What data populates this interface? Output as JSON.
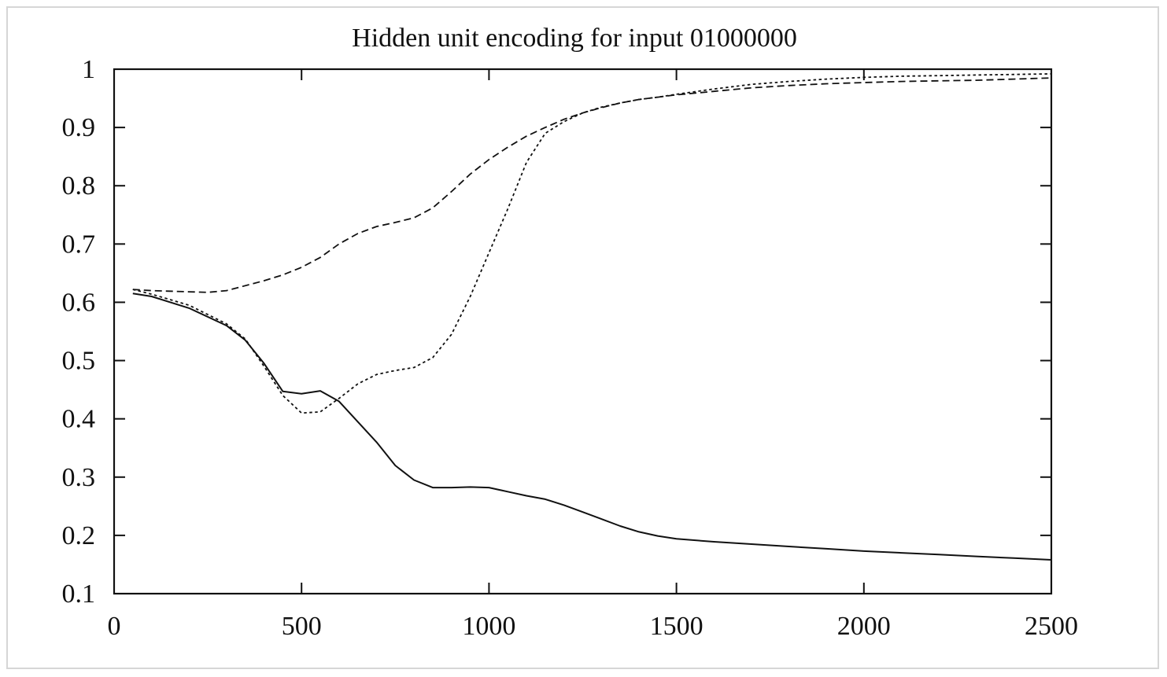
{
  "chart_data": {
    "type": "line",
    "title": "Hidden unit encoding for input 01000000",
    "xlabel": "",
    "ylabel": "",
    "xlim": [
      0,
      2500
    ],
    "ylim": [
      0.1,
      1
    ],
    "x_ticks": [
      0,
      500,
      1000,
      1500,
      2000,
      2500
    ],
    "x_tick_labels": [
      "0",
      "500",
      "1000",
      "1500",
      "2000",
      "2500"
    ],
    "y_ticks": [
      0.1,
      0.2,
      0.3,
      0.4,
      0.5,
      0.6,
      0.7,
      0.8,
      0.9,
      1
    ],
    "y_tick_labels": [
      "0.1",
      "0.2",
      "0.3",
      "0.4",
      "0.5",
      "0.6",
      "0.7",
      "0.8",
      "0.9",
      "1"
    ],
    "grid": false,
    "legend": "none",
    "series": [
      {
        "style": "solid",
        "x": [
          50,
          100,
          200,
          300,
          350,
          400,
          450,
          500,
          550,
          600,
          650,
          700,
          750,
          800,
          850,
          900,
          950,
          1000,
          1050,
          1100,
          1150,
          1200,
          1250,
          1300,
          1350,
          1400,
          1450,
          1500,
          1600,
          1700,
          1800,
          1900,
          2000,
          2100,
          2200,
          2300,
          2400,
          2500
        ],
        "y": [
          0.615,
          0.61,
          0.59,
          0.56,
          0.535,
          0.495,
          0.447,
          0.443,
          0.448,
          0.43,
          0.395,
          0.36,
          0.32,
          0.295,
          0.282,
          0.282,
          0.283,
          0.282,
          0.275,
          0.268,
          0.262,
          0.252,
          0.24,
          0.228,
          0.216,
          0.206,
          0.199,
          0.194,
          0.189,
          0.185,
          0.181,
          0.177,
          0.173,
          0.17,
          0.167,
          0.164,
          0.161,
          0.158
        ]
      },
      {
        "style": "dashed",
        "x": [
          50,
          100,
          200,
          250,
          300,
          400,
          450,
          500,
          550,
          600,
          650,
          700,
          750,
          800,
          850,
          900,
          950,
          1000,
          1050,
          1100,
          1150,
          1200,
          1250,
          1300,
          1350,
          1400,
          1450,
          1500,
          1600,
          1700,
          1800,
          1900,
          2000,
          2100,
          2200,
          2300,
          2400,
          2500
        ],
        "y": [
          0.622,
          0.62,
          0.618,
          0.617,
          0.62,
          0.637,
          0.647,
          0.66,
          0.677,
          0.7,
          0.718,
          0.73,
          0.737,
          0.745,
          0.762,
          0.79,
          0.82,
          0.845,
          0.866,
          0.885,
          0.9,
          0.914,
          0.925,
          0.934,
          0.942,
          0.948,
          0.952,
          0.956,
          0.962,
          0.968,
          0.972,
          0.975,
          0.977,
          0.979,
          0.98,
          0.981,
          0.983,
          0.985
        ]
      },
      {
        "style": "dotted",
        "x": [
          50,
          100,
          200,
          300,
          350,
          400,
          450,
          500,
          550,
          600,
          650,
          700,
          750,
          800,
          850,
          900,
          950,
          1000,
          1050,
          1100,
          1150,
          1200,
          1250,
          1300,
          1350,
          1400,
          1450,
          1500,
          1600,
          1700,
          1800,
          1900,
          2000,
          2100,
          2200,
          2300,
          2400,
          2500
        ],
        "y": [
          0.622,
          0.614,
          0.595,
          0.563,
          0.537,
          0.49,
          0.44,
          0.41,
          0.412,
          0.435,
          0.46,
          0.476,
          0.483,
          0.488,
          0.505,
          0.545,
          0.61,
          0.685,
          0.76,
          0.84,
          0.89,
          0.91,
          0.925,
          0.935,
          0.942,
          0.948,
          0.952,
          0.957,
          0.966,
          0.974,
          0.979,
          0.983,
          0.986,
          0.988,
          0.989,
          0.99,
          0.991,
          0.992
        ]
      }
    ]
  }
}
